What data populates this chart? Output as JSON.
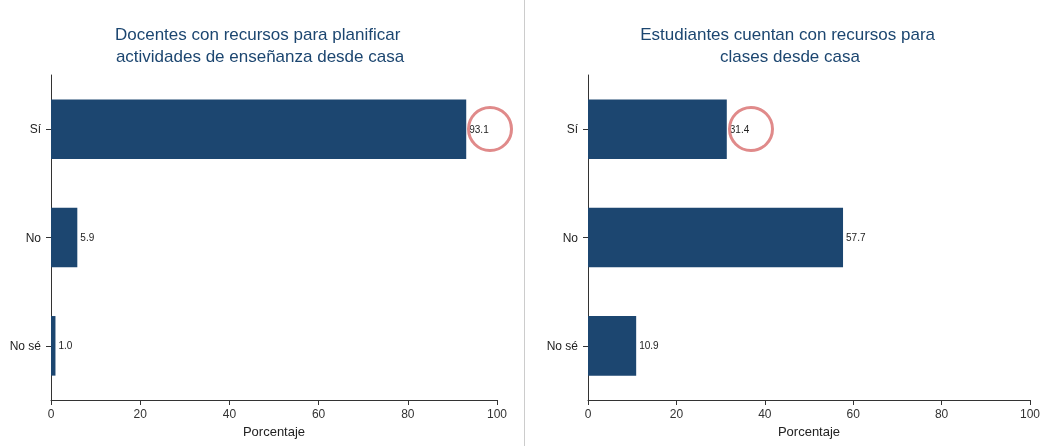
{
  "chart_data": [
    {
      "type": "bar",
      "orientation": "horizontal",
      "title": "Docentes con recursos para planificar actividades de enseñanza desde casa",
      "xlabel": "Porcentaje",
      "categories": [
        "Sí",
        "No",
        "No sé"
      ],
      "values": [
        93.1,
        5.9,
        1.0
      ],
      "value_labels": [
        "93.1",
        "5.9",
        "1.0"
      ],
      "color": "#1c4670",
      "xlim": [
        0,
        100
      ],
      "xticks": [
        0,
        20,
        40,
        60,
        80,
        100
      ],
      "grid": false
    },
    {
      "type": "bar",
      "orientation": "horizontal",
      "title": "Estudiantes cuentan con recursos para clases desde casa",
      "xlabel": "Porcentaje",
      "categories": [
        "Sí",
        "No",
        "No sé"
      ],
      "values": [
        31.4,
        57.7,
        10.9
      ],
      "value_labels": [
        "31.4",
        "57.7",
        "10.9"
      ],
      "color": "#1c4670",
      "xlim": [
        0,
        100
      ],
      "xticks": [
        0,
        20,
        40,
        60,
        80,
        100
      ],
      "grid": false
    }
  ]
}
